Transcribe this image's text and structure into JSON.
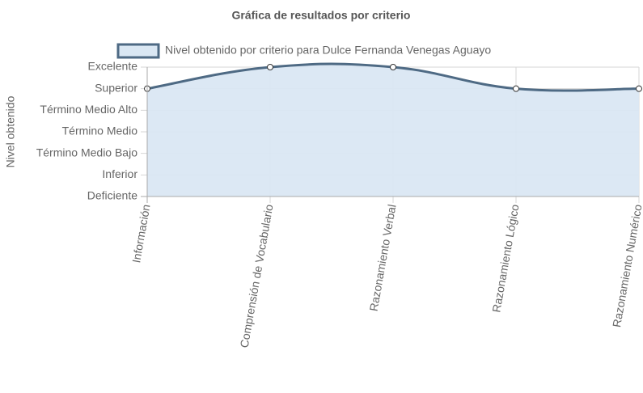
{
  "chart_data": {
    "type": "line",
    "title": "Gráfica de resultados por criterio",
    "y_label": "Nivel obtenido",
    "categories": [
      "Información",
      "Comprensión de Vocabulario",
      "Razonamiento Verbal",
      "Razonamiento Lógico",
      "Razonamiento Numérico"
    ],
    "series": [
      {
        "name": "Nivel obtenido por criterio para Dulce Fernanda Venegas Aguayo",
        "color": "#4e6a84",
        "fill": "#dae7f3",
        "values": [
          5,
          6,
          6,
          5,
          5
        ]
      }
    ],
    "ylim": [
      0,
      6
    ],
    "yticks": [
      {
        "value": 0,
        "label": "Deficiente"
      },
      {
        "value": 1,
        "label": "Inferior"
      },
      {
        "value": 2,
        "label": "Término Medio Bajo"
      },
      {
        "value": 3,
        "label": "Término Medio"
      },
      {
        "value": 4,
        "label": "Término Medio Alto"
      },
      {
        "value": 5,
        "label": "Superior"
      },
      {
        "value": 6,
        "label": "Excelente"
      }
    ],
    "grid": true,
    "legend": "top"
  }
}
